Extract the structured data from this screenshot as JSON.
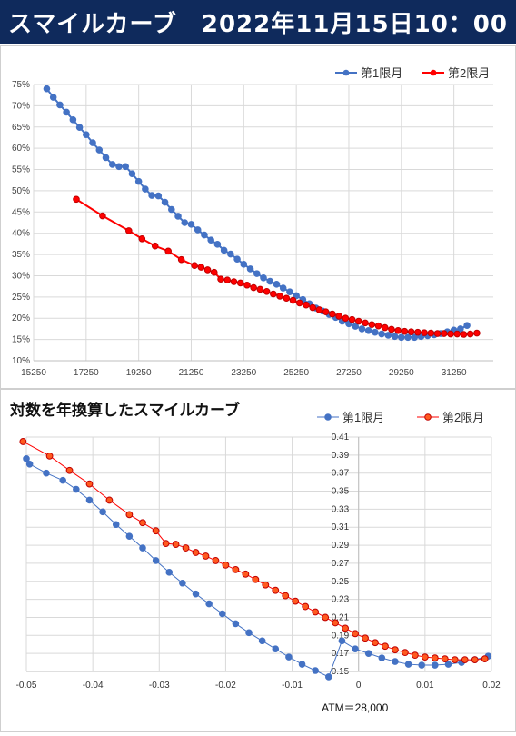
{
  "header": {
    "title": "スマイルカーブ　2022年11月15日10：00"
  },
  "chart_data": [
    {
      "type": "line",
      "title": "",
      "xlabel": "",
      "ylabel": "",
      "xlim": [
        15250,
        32750
      ],
      "ylim": [
        10,
        75
      ],
      "x_ticks": [
        "15250",
        "17250",
        "19250",
        "21250",
        "23250",
        "25250",
        "27250",
        "29250",
        "31250"
      ],
      "x_tick_values": [
        15250,
        17250,
        19250,
        21250,
        23250,
        25250,
        27250,
        29250,
        31250
      ],
      "y_ticks": [
        "10%",
        "15%",
        "20%",
        "25%",
        "30%",
        "35%",
        "40%",
        "45%",
        "50%",
        "55%",
        "60%",
        "65%",
        "70%",
        "75%"
      ],
      "y_tick_values": [
        10,
        15,
        20,
        25,
        30,
        35,
        40,
        45,
        50,
        55,
        60,
        65,
        70,
        75
      ],
      "legend_position": "top-right",
      "grid": true,
      "series": [
        {
          "name": "第1限月",
          "color": "#4472c4",
          "x": [
            15750,
            16000,
            16250,
            16500,
            16750,
            17000,
            17250,
            17500,
            17750,
            18000,
            18250,
            18500,
            18750,
            19000,
            19250,
            19500,
            19750,
            20000,
            20250,
            20500,
            20750,
            21000,
            21250,
            21500,
            21750,
            22000,
            22250,
            22500,
            22750,
            23000,
            23250,
            23500,
            23750,
            24000,
            24250,
            24500,
            24750,
            25000,
            25250,
            25500,
            25750,
            26000,
            26250,
            26500,
            26750,
            27000,
            27250,
            27500,
            27750,
            28000,
            28250,
            28500,
            28750,
            29000,
            29250,
            29500,
            29750,
            30000,
            30250,
            30500,
            30750,
            31000,
            31250,
            31500,
            31750
          ],
          "y": [
            74,
            72,
            70.2,
            68.5,
            66.7,
            64.9,
            63.2,
            61.3,
            59.6,
            57.8,
            56.2,
            55.7,
            55.7,
            54,
            52.2,
            50.4,
            48.9,
            48.8,
            47.3,
            45.6,
            44,
            42.5,
            42.1,
            40.8,
            39.6,
            38.4,
            37.4,
            36,
            35.1,
            33.9,
            32.7,
            31.6,
            30.5,
            29.5,
            28.7,
            28,
            27.1,
            26.2,
            25.3,
            24.4,
            23.4,
            22.4,
            21.7,
            20.9,
            20.2,
            19.3,
            18.7,
            18.1,
            17.5,
            17.1,
            16.7,
            16.3,
            16,
            15.7,
            15.5,
            15.5,
            15.5,
            15.7,
            15.9,
            16.1,
            16.4,
            16.8,
            17.2,
            17.5,
            18.3
          ]
        },
        {
          "name": "第2限月",
          "color": "#ff0000",
          "x": [
            16875,
            17875,
            18875,
            19375,
            19875,
            20375,
            20875,
            21375,
            21625,
            21875,
            22125,
            22375,
            22625,
            22875,
            23125,
            23375,
            23625,
            23875,
            24125,
            24375,
            24625,
            24875,
            25125,
            25375,
            25625,
            25875,
            26125,
            26375,
            26625,
            26875,
            27125,
            27375,
            27625,
            27875,
            28125,
            28375,
            28625,
            28875,
            29125,
            29375,
            29625,
            29875,
            30125,
            30375,
            30625,
            30875,
            31125,
            31375,
            31625,
            31875,
            32125
          ],
          "y": [
            48,
            44.1,
            40.6,
            38.7,
            37,
            35.8,
            33.8,
            32.4,
            32,
            31.4,
            30.8,
            29.2,
            29,
            28.6,
            28.3,
            27.8,
            27.2,
            26.8,
            26.3,
            25.7,
            25.2,
            24.7,
            24.2,
            23.6,
            23.1,
            22.5,
            22,
            21.5,
            21,
            20.5,
            20,
            19.7,
            19.3,
            18.9,
            18.5,
            18.2,
            17.8,
            17.4,
            17.1,
            16.9,
            16.8,
            16.7,
            16.6,
            16.5,
            16.4,
            16.4,
            16.3,
            16.3,
            16.2,
            16.3,
            16.5
          ]
        }
      ]
    },
    {
      "type": "line",
      "title": "対数を年換算したスマイルカーブ",
      "xlabel": "ATM＝28,000",
      "ylabel": "",
      "xlim": [
        -0.05,
        0.02
      ],
      "ylim": [
        0.15,
        0.41
      ],
      "x_ticks": [
        "-0.05",
        "-0.04",
        "-0.03",
        "-0.02",
        "-0.01",
        "0",
        "0.01",
        "0.02"
      ],
      "x_tick_values": [
        -0.05,
        -0.04,
        -0.03,
        -0.02,
        -0.01,
        0,
        0.01,
        0.02
      ],
      "y_ticks": [
        "0.15",
        "0.17",
        "0.19",
        "0.21",
        "0.23",
        "0.25",
        "0.27",
        "0.29",
        "0.31",
        "0.33",
        "0.35",
        "0.37",
        "0.39",
        "0.41"
      ],
      "y_tick_values": [
        0.15,
        0.17,
        0.19,
        0.21,
        0.23,
        0.25,
        0.27,
        0.29,
        0.31,
        0.33,
        0.35,
        0.37,
        0.39,
        0.41
      ],
      "legend_position": "top-right",
      "grid": true,
      "series": [
        {
          "name": "第1限月",
          "color": "#4472c4",
          "x": [
            -0.05,
            -0.0495,
            -0.047,
            -0.0445,
            -0.0425,
            -0.0405,
            -0.0385,
            -0.0365,
            -0.0345,
            -0.0325,
            -0.0305,
            -0.0285,
            -0.0265,
            -0.0245,
            -0.0225,
            -0.0205,
            -0.0185,
            -0.0165,
            -0.0145,
            -0.0125,
            -0.0105,
            -0.0085,
            -0.0065,
            -0.0045,
            -0.0025,
            -0.0005,
            0.0015,
            0.0035,
            0.0055,
            0.0075,
            0.0095,
            0.0115,
            0.0135,
            0.0155,
            0.0175,
            0.0195
          ],
          "y": [
            0.386,
            0.38,
            0.37,
            0.362,
            0.352,
            0.34,
            0.327,
            0.313,
            0.3,
            0.287,
            0.273,
            0.26,
            0.248,
            0.236,
            0.225,
            0.214,
            0.203,
            0.193,
            0.184,
            0.175,
            0.166,
            0.158,
            0.151,
            0.144,
            0.184,
            0.175,
            0.17,
            0.165,
            0.161,
            0.158,
            0.157,
            0.157,
            0.158,
            0.16,
            0.163,
            0.167
          ]
        },
        {
          "name": "第2限月",
          "color": "#ff0000",
          "x": [
            -0.0505,
            -0.0465,
            -0.0435,
            -0.0405,
            -0.0375,
            -0.0345,
            -0.0325,
            -0.0305,
            -0.029,
            -0.0275,
            -0.026,
            -0.0245,
            -0.023,
            -0.0215,
            -0.02,
            -0.0185,
            -0.017,
            -0.0155,
            -0.014,
            -0.0125,
            -0.011,
            -0.0095,
            -0.008,
            -0.0065,
            -0.005,
            -0.0035,
            -0.002,
            -0.0005,
            0.001,
            0.0025,
            0.004,
            0.0055,
            0.007,
            0.0085,
            0.01,
            0.0115,
            0.013,
            0.0145,
            0.016,
            0.0175,
            0.019
          ],
          "y": [
            0.405,
            0.389,
            0.373,
            0.358,
            0.34,
            0.324,
            0.315,
            0.306,
            0.292,
            0.291,
            0.287,
            0.282,
            0.278,
            0.273,
            0.268,
            0.263,
            0.258,
            0.252,
            0.246,
            0.24,
            0.234,
            0.228,
            0.222,
            0.216,
            0.21,
            0.204,
            0.198,
            0.192,
            0.187,
            0.182,
            0.178,
            0.174,
            0.171,
            0.168,
            0.166,
            0.165,
            0.164,
            0.163,
            0.163,
            0.163,
            0.164
          ]
        }
      ]
    }
  ]
}
